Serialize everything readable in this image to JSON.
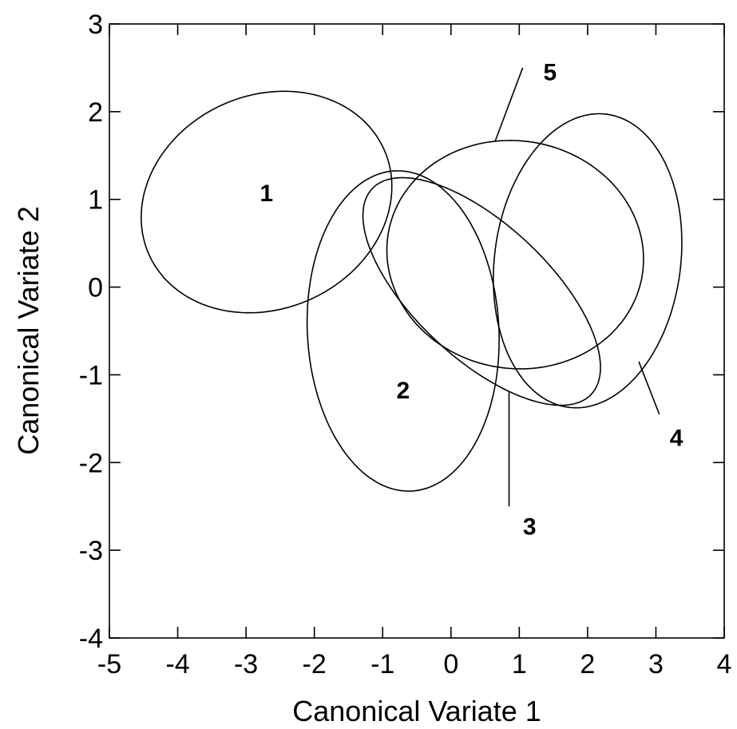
{
  "chart_data": {
    "type": "scatter",
    "subtype": "confidence-ellipses",
    "title": "",
    "xlabel": "Canonical Variate 1",
    "ylabel": "Canonical Variate 2",
    "xlim": [
      -5,
      4
    ],
    "ylim": [
      -4,
      3
    ],
    "xticks": [
      -5,
      -4,
      -3,
      -2,
      -1,
      0,
      1,
      2,
      3,
      4
    ],
    "yticks": [
      -4,
      -3,
      -2,
      -1,
      0,
      1,
      2,
      3
    ],
    "grid": false,
    "legend": "none",
    "ellipses": [
      {
        "label": "1",
        "cx": -2.7,
        "cy": 0.97,
        "a": 1.85,
        "b": 1.24,
        "angle": 10,
        "label_at": [
          -2.7,
          1.07
        ]
      },
      {
        "label": "2",
        "cx": -0.7,
        "cy": -0.5,
        "a": 1.83,
        "b": 1.4,
        "angle": 96,
        "label_at": [
          -0.7,
          -1.18
        ]
      },
      {
        "label": "3",
        "cx": 0.45,
        "cy": -0.05,
        "a": 2.0,
        "b": 0.84,
        "angle": -33,
        "label_at": [
          1.15,
          -2.73
        ],
        "leader_from": [
          0.85,
          -1.2
        ],
        "leader_to": [
          0.85,
          -2.5
        ]
      },
      {
        "label": "4",
        "cx": 2.0,
        "cy": 0.3,
        "a": 1.7,
        "b": 1.35,
        "angle": 74,
        "label_at": [
          3.3,
          -1.72
        ],
        "leader_from": [
          2.75,
          -0.85
        ],
        "leader_to": [
          3.05,
          -1.45
        ]
      },
      {
        "label": "5",
        "cx": 0.94,
        "cy": 0.37,
        "a": 1.88,
        "b": 1.3,
        "angle": -3,
        "label_at": [
          1.45,
          2.45
        ],
        "leader_from": [
          0.65,
          1.67
        ],
        "leader_to": [
          1.05,
          2.5
        ]
      }
    ]
  }
}
